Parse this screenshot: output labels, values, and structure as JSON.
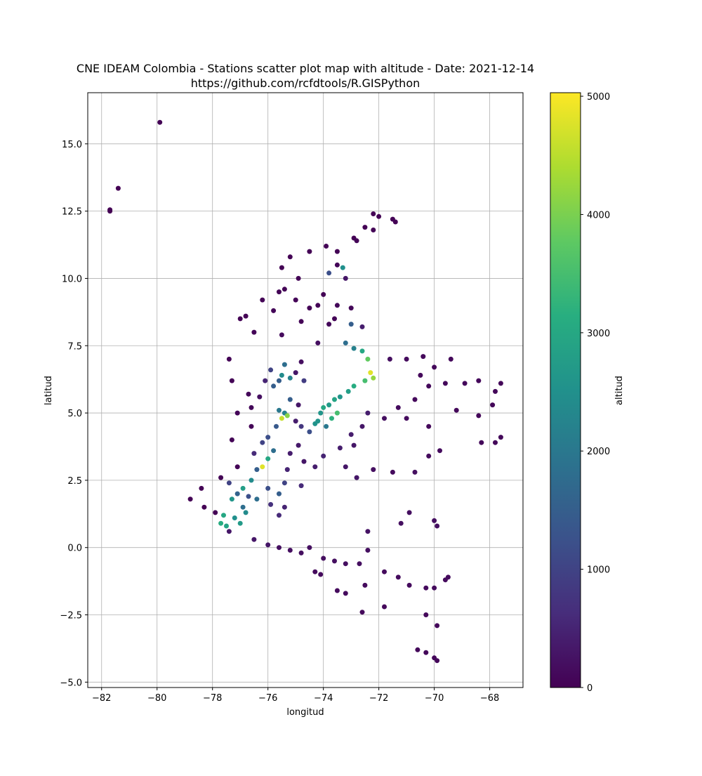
{
  "chart_data": {
    "type": "scatter",
    "title": "CNE IDEAM Colombia -  Stations scatter plot map with altitude - Date: 2021-12-14",
    "subtitle": "https://github.com/rcfdtools/R.GISPython",
    "xlabel": "longitud",
    "ylabel": "latitud",
    "colorbar_label": "altitud",
    "xlim": [
      -82.5,
      -66.8
    ],
    "ylim": [
      -5.2,
      16.9
    ],
    "x_ticks": [
      -82,
      -80,
      -78,
      -76,
      -74,
      -72,
      -70,
      -68
    ],
    "y_ticks": [
      -5.0,
      -2.5,
      0.0,
      2.5,
      5.0,
      7.5,
      10.0,
      12.5,
      15.0
    ],
    "x_tick_labels": [
      "−82",
      "−80",
      "−78",
      "−76",
      "−74",
      "−72",
      "−70",
      "−68"
    ],
    "y_tick_labels": [
      "−5.0",
      "−2.5",
      "0.0",
      "2.5",
      "5.0",
      "7.5",
      "10.0",
      "12.5",
      "15.0"
    ],
    "colorbar_range": [
      0,
      5030
    ],
    "colorbar_ticks": [
      0,
      1000,
      2000,
      3000,
      4000,
      5000
    ],
    "colorbar_tick_labels": [
      "0",
      "1000",
      "2000",
      "3000",
      "4000",
      "5000"
    ],
    "colormap": "viridis",
    "grid": true,
    "points": [
      [
        -79.9,
        15.8,
        10
      ],
      [
        -81.4,
        13.35,
        5
      ],
      [
        -81.7,
        12.55,
        5
      ],
      [
        -81.7,
        12.5,
        5
      ],
      [
        -72.0,
        12.3,
        20
      ],
      [
        -71.5,
        12.2,
        30
      ],
      [
        -72.5,
        11.9,
        10
      ],
      [
        -72.9,
        11.5,
        20
      ],
      [
        -73.9,
        11.2,
        30
      ],
      [
        -74.5,
        11.0,
        10
      ],
      [
        -75.2,
        10.8,
        20
      ],
      [
        -75.5,
        10.4,
        20
      ],
      [
        -74.9,
        10.0,
        40
      ],
      [
        -73.5,
        10.5,
        60
      ],
      [
        -73.3,
        10.4,
        2500
      ],
      [
        -73.8,
        10.2,
        1200
      ],
      [
        -73.2,
        10.0,
        300
      ],
      [
        -75.6,
        9.5,
        30
      ],
      [
        -76.2,
        9.2,
        40
      ],
      [
        -75.0,
        9.2,
        50
      ],
      [
        -74.2,
        9.0,
        30
      ],
      [
        -73.5,
        9.0,
        80
      ],
      [
        -76.8,
        8.6,
        20
      ],
      [
        -75.8,
        8.8,
        60
      ],
      [
        -74.8,
        8.4,
        40
      ],
      [
        -73.8,
        8.3,
        100
      ],
      [
        -73.0,
        8.3,
        1500
      ],
      [
        -72.6,
        8.2,
        400
      ],
      [
        -76.5,
        8.0,
        50
      ],
      [
        -75.5,
        7.9,
        150
      ],
      [
        -74.2,
        7.6,
        200
      ],
      [
        -73.2,
        7.6,
        1800
      ],
      [
        -72.9,
        7.4,
        2200
      ],
      [
        -72.6,
        7.3,
        3000
      ],
      [
        -72.4,
        7.0,
        3800
      ],
      [
        -72.3,
        6.5,
        4800
      ],
      [
        -72.2,
        6.3,
        4200
      ],
      [
        -72.5,
        6.2,
        3500
      ],
      [
        -72.9,
        6.0,
        3100
      ],
      [
        -73.1,
        5.8,
        2800
      ],
      [
        -73.4,
        5.6,
        2600
      ],
      [
        -73.6,
        5.5,
        2900
      ],
      [
        -73.8,
        5.3,
        2700
      ],
      [
        -74.0,
        5.2,
        3000
      ],
      [
        -74.1,
        5.0,
        2600
      ],
      [
        -74.2,
        4.7,
        2580
      ],
      [
        -74.3,
        4.6,
        2550
      ],
      [
        -73.7,
        4.8,
        3200
      ],
      [
        -73.5,
        5.0,
        3500
      ],
      [
        -73.9,
        4.5,
        2000
      ],
      [
        -74.5,
        4.3,
        1200
      ],
      [
        -74.8,
        4.5,
        800
      ],
      [
        -75.0,
        4.7,
        400
      ],
      [
        -74.9,
        5.3,
        300
      ],
      [
        -75.2,
        5.5,
        1500
      ],
      [
        -75.4,
        5.0,
        2200
      ],
      [
        -75.5,
        4.8,
        4600
      ],
      [
        -75.3,
        4.9,
        4100
      ],
      [
        -75.6,
        5.1,
        2000
      ],
      [
        -75.7,
        4.5,
        1400
      ],
      [
        -75.8,
        6.0,
        1500
      ],
      [
        -75.6,
        6.2,
        1500
      ],
      [
        -75.5,
        6.4,
        2400
      ],
      [
        -75.2,
        6.3,
        2200
      ],
      [
        -75.4,
        6.8,
        1800
      ],
      [
        -75.9,
        6.6,
        1000
      ],
      [
        -76.1,
        6.2,
        500
      ],
      [
        -75.0,
        6.5,
        300
      ],
      [
        -74.8,
        6.9,
        200
      ],
      [
        -74.7,
        6.2,
        900
      ],
      [
        -76.3,
        5.6,
        200
      ],
      [
        -76.6,
        5.2,
        80
      ],
      [
        -76.6,
        4.5,
        50
      ],
      [
        -76.0,
        4.1,
        1200
      ],
      [
        -76.2,
        3.9,
        1000
      ],
      [
        -75.8,
        3.6,
        1800
      ],
      [
        -76.0,
        3.3,
        3000
      ],
      [
        -76.2,
        3.0,
        4800
      ],
      [
        -76.4,
        2.9,
        1500
      ],
      [
        -76.6,
        2.5,
        2400
      ],
      [
        -76.9,
        2.2,
        2800
      ],
      [
        -77.3,
        1.8,
        2600
      ],
      [
        -77.6,
        1.2,
        3000
      ],
      [
        -77.7,
        0.9,
        3100
      ],
      [
        -77.5,
        0.8,
        2900
      ],
      [
        -77.2,
        1.1,
        2500
      ],
      [
        -76.9,
        1.5,
        1800
      ],
      [
        -76.7,
        1.9,
        1200
      ],
      [
        -77.1,
        2.0,
        1600
      ],
      [
        -77.4,
        2.4,
        1000
      ],
      [
        -76.5,
        3.5,
        600
      ],
      [
        -76.0,
        2.2,
        1200
      ],
      [
        -75.6,
        2.0,
        1500
      ],
      [
        -75.9,
        1.6,
        700
      ],
      [
        -75.4,
        2.4,
        1000
      ],
      [
        -75.3,
        2.9,
        500
      ],
      [
        -75.2,
        3.5,
        400
      ],
      [
        -74.9,
        3.8,
        350
      ],
      [
        -74.7,
        3.2,
        300
      ],
      [
        -74.3,
        3.0,
        400
      ],
      [
        -74.0,
        3.4,
        500
      ],
      [
        -74.8,
        2.3,
        600
      ],
      [
        -75.4,
        1.5,
        500
      ],
      [
        -75.6,
        1.2,
        600
      ],
      [
        -76.4,
        1.8,
        1800
      ],
      [
        -76.8,
        1.3,
        2400
      ],
      [
        -77.0,
        0.9,
        2700
      ],
      [
        -77.4,
        0.6,
        300
      ],
      [
        -77.9,
        1.3,
        20
      ],
      [
        -78.3,
        1.5,
        20
      ],
      [
        -78.8,
        1.8,
        10
      ],
      [
        -78.4,
        2.2,
        20
      ],
      [
        -77.7,
        2.6,
        20
      ],
      [
        -77.1,
        3.0,
        30
      ],
      [
        -77.3,
        4.0,
        40
      ],
      [
        -77.1,
        5.0,
        60
      ],
      [
        -76.7,
        5.7,
        80
      ],
      [
        -77.3,
        6.2,
        40
      ],
      [
        -77.4,
        7.0,
        30
      ],
      [
        -77.0,
        8.5,
        20
      ],
      [
        -73.0,
        4.2,
        400
      ],
      [
        -72.6,
        4.5,
        300
      ],
      [
        -72.9,
        3.8,
        300
      ],
      [
        -73.4,
        3.7,
        400
      ],
      [
        -73.2,
        3.0,
        300
      ],
      [
        -72.8,
        2.6,
        300
      ],
      [
        -72.2,
        2.9,
        200
      ],
      [
        -71.5,
        2.8,
        150
      ],
      [
        -72.4,
        5.0,
        400
      ],
      [
        -71.8,
        4.8,
        200
      ],
      [
        -71.0,
        4.8,
        150
      ],
      [
        -71.3,
        5.2,
        150
      ],
      [
        -70.7,
        5.5,
        120
      ],
      [
        -70.2,
        6.0,
        100
      ],
      [
        -69.6,
        6.1,
        100
      ],
      [
        -68.9,
        6.1,
        90
      ],
      [
        -68.4,
        6.2,
        90
      ],
      [
        -67.6,
        6.1,
        80
      ],
      [
        -67.8,
        5.8,
        80
      ],
      [
        -67.9,
        5.3,
        80
      ],
      [
        -68.4,
        4.9,
        90
      ],
      [
        -69.2,
        5.1,
        100
      ],
      [
        -70.2,
        4.5,
        120
      ],
      [
        -69.8,
        3.6,
        150
      ],
      [
        -70.2,
        3.4,
        150
      ],
      [
        -70.7,
        2.8,
        200
      ],
      [
        -68.3,
        3.9,
        100
      ],
      [
        -67.8,
        3.9,
        100
      ],
      [
        -67.6,
        4.1,
        100
      ],
      [
        -71.0,
        7.0,
        150
      ],
      [
        -71.6,
        7.0,
        200
      ],
      [
        -70.4,
        7.1,
        120
      ],
      [
        -69.4,
        7.0,
        100
      ],
      [
        -70.0,
        6.7,
        100
      ],
      [
        -70.5,
        6.4,
        120
      ],
      [
        -73.6,
        8.5,
        50
      ],
      [
        -73.0,
        8.9,
        80
      ],
      [
        -74.0,
        9.4,
        40
      ],
      [
        -75.4,
        9.6,
        30
      ],
      [
        -74.5,
        8.9,
        30
      ],
      [
        -73.5,
        11.0,
        20
      ],
      [
        -72.8,
        11.4,
        50
      ],
      [
        -72.2,
        11.8,
        40
      ],
      [
        -71.4,
        12.1,
        20
      ],
      [
        -72.2,
        12.4,
        20
      ],
      [
        -70.9,
        1.3,
        200
      ],
      [
        -70.0,
        1.0,
        200
      ],
      [
        -69.9,
        0.8,
        200
      ],
      [
        -71.2,
        0.9,
        200
      ],
      [
        -72.4,
        0.6,
        250
      ],
      [
        -72.4,
        -0.1,
        200
      ],
      [
        -72.7,
        -0.6,
        200
      ],
      [
        -73.2,
        -0.6,
        200
      ],
      [
        -73.6,
        -0.5,
        200
      ],
      [
        -74.0,
        -0.4,
        200
      ],
      [
        -74.5,
        0.0,
        200
      ],
      [
        -74.8,
        -0.2,
        200
      ],
      [
        -75.2,
        -0.1,
        200
      ],
      [
        -75.6,
        0.0,
        200
      ],
      [
        -76.0,
        0.1,
        300
      ],
      [
        -76.5,
        0.3,
        300
      ],
      [
        -74.3,
        -0.9,
        150
      ],
      [
        -74.1,
        -1.0,
        150
      ],
      [
        -73.5,
        -1.6,
        150
      ],
      [
        -73.2,
        -1.7,
        150
      ],
      [
        -72.5,
        -1.4,
        150
      ],
      [
        -71.8,
        -0.9,
        150
      ],
      [
        -71.3,
        -1.1,
        150
      ],
      [
        -70.9,
        -1.4,
        150
      ],
      [
        -70.3,
        -1.5,
        150
      ],
      [
        -70.0,
        -1.5,
        150
      ],
      [
        -69.6,
        -1.2,
        150
      ],
      [
        -69.5,
        -1.1,
        150
      ],
      [
        -72.6,
        -2.4,
        120
      ],
      [
        -71.8,
        -2.2,
        120
      ],
      [
        -70.3,
        -2.5,
        120
      ],
      [
        -69.9,
        -2.9,
        100
      ],
      [
        -70.6,
        -3.8,
        100
      ],
      [
        -70.3,
        -3.9,
        100
      ],
      [
        -70.0,
        -4.1,
        90
      ],
      [
        -69.9,
        -4.2,
        90
      ]
    ]
  }
}
